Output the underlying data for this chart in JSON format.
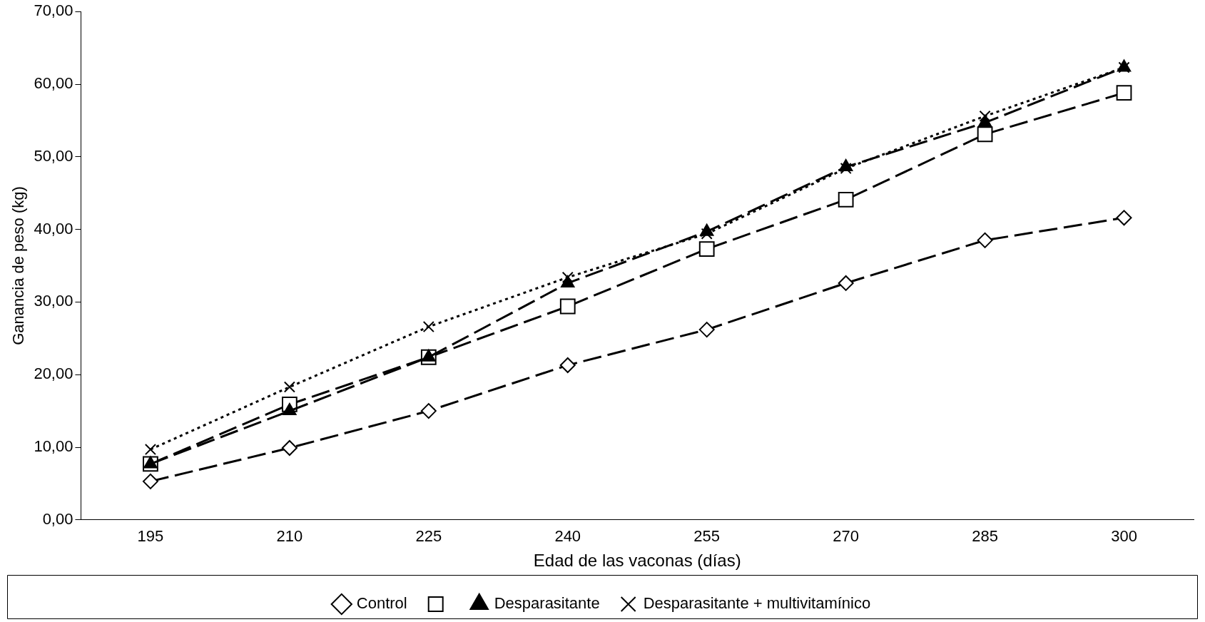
{
  "chart_data": {
    "type": "line",
    "xlabel": "Edad de las vaconas (días)",
    "ylabel": "Ganancia de peso (kg)",
    "categories": [
      "195",
      "210",
      "225",
      "240",
      "255",
      "270",
      "285",
      "300"
    ],
    "series": [
      {
        "name": "Control",
        "color": "#000000",
        "marker": "diamond",
        "line_style": "dashed",
        "values": [
          5.3,
          9.9,
          15.0,
          21.3,
          26.2,
          32.6,
          38.5,
          41.6
        ]
      },
      {
        "color": "#000000",
        "marker": "square",
        "line_style": "dashed",
        "values": [
          7.7,
          15.9,
          22.4,
          29.4,
          37.3,
          44.1,
          53.1,
          58.8
        ]
      },
      {
        "name": "Desparasitante",
        "color": "#000000",
        "marker": "triangle",
        "line_style": "dashed",
        "values": [
          7.7,
          15.0,
          22.4,
          32.6,
          39.7,
          48.6,
          54.7,
          62.3
        ]
      },
      {
        "name": "Desparasitante + multivitamínico",
        "color": "#000000",
        "marker": "cross",
        "line_style": "dotted",
        "values": [
          9.7,
          18.3,
          26.6,
          33.4,
          39.4,
          48.4,
          55.6,
          62.3
        ]
      }
    ],
    "ylim": [
      0,
      70
    ],
    "yticks": [
      {
        "value": 0,
        "label": "0,00"
      },
      {
        "value": 10,
        "label": "10,00"
      },
      {
        "value": 20,
        "label": "20,00"
      },
      {
        "value": 30,
        "label": "30,00"
      },
      {
        "value": 40,
        "label": "40,00"
      },
      {
        "value": 50,
        "label": "50,00"
      },
      {
        "value": 60,
        "label": "60,00"
      },
      {
        "value": 70,
        "label": "70,00"
      }
    ],
    "grid": false,
    "legend": "bottom"
  }
}
